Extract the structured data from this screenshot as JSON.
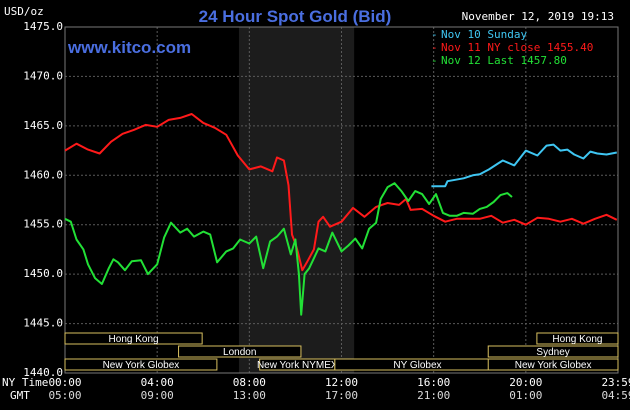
{
  "title": "24 Hour Spot Gold (Bid)",
  "unit_label": "USD/oz",
  "timestamp": "November 12, 2019 19:13",
  "brand": "www.kitco.com",
  "colors": {
    "background": "#000000",
    "grid": "#5a5a5a",
    "title": "#4a6ee0",
    "brand": "#4a6ee0",
    "text": "#ffffff",
    "highlight": "#1c1c1c",
    "session_border": "#d8c060",
    "session_text": "#ffffff"
  },
  "row_labels": {
    "ny": "NY Time",
    "gmt": "GMT"
  },
  "gmt_ticks": [
    "05:00",
    "09:00",
    "13:00",
    "17:00",
    "21:00",
    "01:00",
    "04:59"
  ],
  "sessions": [
    {
      "label": "Hong Kong",
      "start": 0,
      "end": 9.3
    },
    {
      "label": "London",
      "start": 7.7,
      "end": 16.0
    },
    {
      "label": "New York Globex",
      "start": 0,
      "end": 10.3
    },
    {
      "label": "New York NYMEX",
      "start": 13.2,
      "end": 18.3
    },
    {
      "label": "NY Globex",
      "start": 18.3,
      "end": 29.5
    },
    {
      "label": "Hong Kong",
      "start": 32.0,
      "end": 37.5
    },
    {
      "label": "Sydney",
      "start": 28.7,
      "end": 37.5
    },
    {
      "label": "New York Globex",
      "start": 28.7,
      "end": 37.5
    }
  ],
  "chart_data": {
    "type": "line",
    "title": "24 Hour Spot Gold (Bid)",
    "ylabel": "USD/oz",
    "x_unit": "hours since 00:00 NY time",
    "xlim": [
      0,
      24
    ],
    "ylim": [
      1440,
      1475
    ],
    "x_ticks": [
      "00:00",
      "04:00",
      "08:00",
      "12:00",
      "16:00",
      "20:00",
      "23:59"
    ],
    "y_ticks": [
      "1440.0",
      "1445.0",
      "1450.0",
      "1455.0",
      "1460.0",
      "1465.0",
      "1470.0",
      "1475.0"
    ],
    "grid": true,
    "legend_position": "top-right",
    "highlight_range": [
      7.55,
      12.55
    ],
    "series": [
      {
        "name": "Nov 10 Sunday",
        "color": "#3fc6f2",
        "x": [
          15.9,
          16.5,
          16.6,
          17.3,
          17.7,
          18.0,
          18.4,
          18.8,
          19.0,
          19.5,
          20.0,
          20.5,
          20.9,
          21.2,
          21.5,
          21.8,
          22.1,
          22.5,
          22.8,
          23.1,
          23.5,
          23.95
        ],
        "y": [
          1458.9,
          1458.9,
          1459.4,
          1459.7,
          1460.0,
          1460.1,
          1460.6,
          1461.2,
          1461.5,
          1461.0,
          1462.5,
          1462.0,
          1463.0,
          1463.1,
          1462.5,
          1462.6,
          1462.1,
          1461.7,
          1462.4,
          1462.2,
          1462.1,
          1462.3
        ]
      },
      {
        "name": "Nov 11 NY close 1455.40",
        "color": "#ff1a1a",
        "x": [
          0,
          0.5,
          1.0,
          1.5,
          2.0,
          2.5,
          3.0,
          3.5,
          4.0,
          4.5,
          5.0,
          5.5,
          6.0,
          6.5,
          7.0,
          7.5,
          8.0,
          8.5,
          9.0,
          9.2,
          9.5,
          9.7,
          9.85,
          10.0,
          10.1,
          10.3,
          10.5,
          10.8,
          11.0,
          11.2,
          11.5,
          12.0,
          12.5,
          13.0,
          13.5,
          14.0,
          14.5,
          14.8,
          15.0,
          15.5,
          16.0,
          16.5,
          17.0,
          17.5,
          18.0,
          18.5,
          19.0,
          19.5,
          20.0,
          20.5,
          21.0,
          21.5,
          22.0,
          22.5,
          23.0,
          23.5,
          23.95
        ],
        "y": [
          1462.5,
          1463.2,
          1462.6,
          1462.2,
          1463.4,
          1464.2,
          1464.6,
          1465.1,
          1464.9,
          1465.6,
          1465.8,
          1466.2,
          1465.3,
          1464.8,
          1464.1,
          1462.0,
          1460.6,
          1460.9,
          1460.4,
          1461.8,
          1461.5,
          1459.0,
          1454.0,
          1453.1,
          1452.3,
          1450.4,
          1451.2,
          1452.5,
          1455.3,
          1455.8,
          1454.8,
          1455.3,
          1456.7,
          1455.8,
          1456.8,
          1457.2,
          1457.0,
          1457.6,
          1456.5,
          1456.6,
          1455.9,
          1455.3,
          1455.6,
          1455.6,
          1455.6,
          1455.9,
          1455.2,
          1455.5,
          1455.0,
          1455.7,
          1455.6,
          1455.3,
          1455.6,
          1455.1,
          1455.6,
          1456.0,
          1455.5
        ]
      },
      {
        "name": "Nov 12 Last 1457.80",
        "color": "#22e036",
        "x": [
          0,
          0.25,
          0.5,
          0.8,
          1.0,
          1.3,
          1.6,
          1.9,
          2.1,
          2.3,
          2.6,
          2.9,
          3.3,
          3.6,
          4.0,
          4.3,
          4.6,
          5.0,
          5.3,
          5.6,
          6.0,
          6.3,
          6.6,
          7.0,
          7.3,
          7.6,
          8.0,
          8.3,
          8.6,
          8.9,
          9.2,
          9.5,
          9.8,
          10.0,
          10.15,
          10.25,
          10.4,
          10.6,
          10.8,
          11.0,
          11.3,
          11.6,
          12.0,
          12.3,
          12.6,
          12.9,
          13.2,
          13.5,
          13.7,
          14.0,
          14.3,
          14.6,
          14.9,
          15.2,
          15.5,
          15.8,
          16.1,
          16.4,
          16.7,
          17.0,
          17.3,
          17.7,
          18.0,
          18.3,
          18.6,
          18.9,
          19.2,
          19.4
        ],
        "y": [
          1455.6,
          1455.3,
          1453.5,
          1452.5,
          1451.0,
          1449.6,
          1449.0,
          1450.6,
          1451.5,
          1451.2,
          1450.4,
          1451.3,
          1451.4,
          1450.0,
          1451.0,
          1453.7,
          1455.2,
          1454.2,
          1454.6,
          1453.8,
          1454.3,
          1454.0,
          1451.2,
          1452.3,
          1452.6,
          1453.5,
          1453.1,
          1453.8,
          1450.6,
          1453.3,
          1453.8,
          1454.6,
          1452.0,
          1453.5,
          1450.0,
          1445.9,
          1450.0,
          1450.6,
          1451.6,
          1452.6,
          1452.3,
          1454.2,
          1452.3,
          1452.9,
          1453.6,
          1452.6,
          1454.6,
          1455.2,
          1457.6,
          1458.8,
          1459.2,
          1458.4,
          1457.4,
          1458.4,
          1458.1,
          1457.1,
          1458.1,
          1456.2,
          1455.9,
          1455.9,
          1456.2,
          1456.1,
          1456.6,
          1456.8,
          1457.3,
          1458.0,
          1458.2,
          1457.8
        ]
      }
    ]
  }
}
